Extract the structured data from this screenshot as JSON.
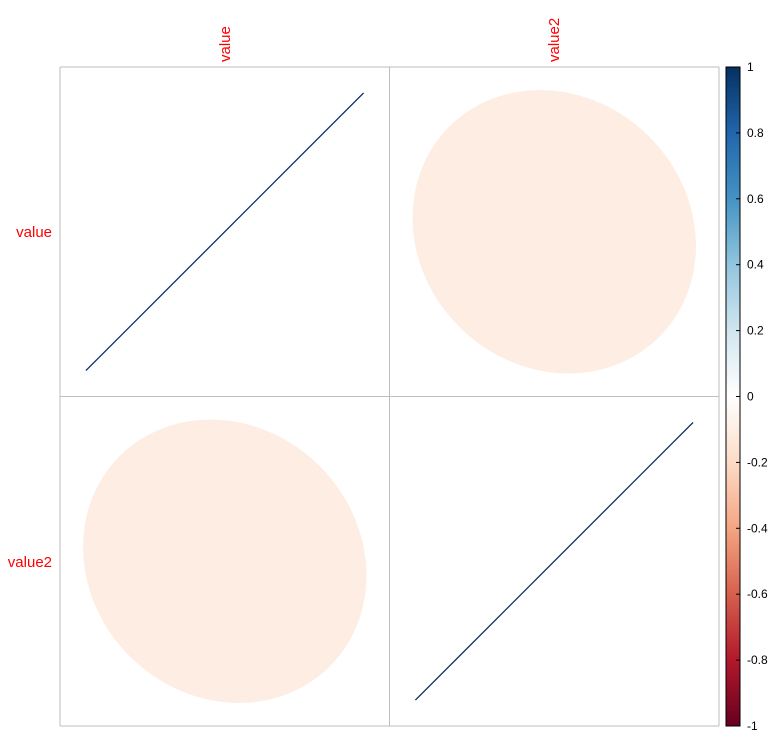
{
  "chart_data": {
    "type": "heatmap",
    "method": "ellipse",
    "variables": [
      "value",
      "value2"
    ],
    "matrix": [
      [
        1,
        -0.1
      ],
      [
        -0.1,
        1
      ]
    ],
    "colorbar": {
      "range": [
        -1,
        1
      ],
      "ticks": [
        "1",
        "0.8",
        "0.6",
        "0.4",
        "0.2",
        "0",
        "-0.2",
        "-0.4",
        "-0.6",
        "-0.8",
        "-1"
      ],
      "placement": "right",
      "colors": [
        "#67001F",
        "#B2182B",
        "#D6604D",
        "#F4A582",
        "#FDDBC7",
        "#FFFFFF",
        "#D1E5F0",
        "#92C5DE",
        "#4393C3",
        "#2166AC",
        "#053061"
      ]
    },
    "label_color": "#FF0000",
    "grid_color": "#BEBEBE"
  }
}
